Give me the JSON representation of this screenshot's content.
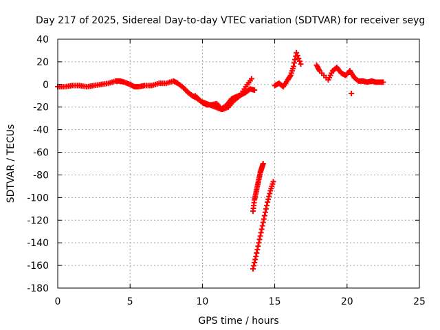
{
  "chart_data": {
    "type": "scatter",
    "title": "Day 217 of 2025, Sidereal Day-to-day VTEC variation (SDTVAR) for receiver seyg",
    "xlabel": "GPS time / hours",
    "ylabel": "SDTVAR / TECUs",
    "xlim": [
      0,
      25
    ],
    "ylim": [
      -180,
      40
    ],
    "xticks": [
      0,
      5,
      10,
      15,
      20,
      25
    ],
    "yticks": [
      40,
      20,
      0,
      -20,
      -40,
      -60,
      -80,
      -100,
      -120,
      -140,
      -160,
      -180
    ],
    "grid": true,
    "marker": "plus",
    "color": "#ff0000",
    "series": [
      {
        "name": "SDTVAR",
        "x": [
          0.0,
          0.5,
          1.0,
          1.5,
          2.0,
          2.5,
          3.0,
          3.5,
          4.0,
          4.3,
          4.6,
          5.0,
          5.3,
          5.6,
          6.0,
          6.5,
          7.0,
          7.5,
          8.0,
          8.3,
          8.7,
          9.0,
          9.3,
          9.6,
          10.0,
          10.3,
          10.6,
          11.0,
          11.3,
          11.7,
          12.0,
          12.3,
          12.7,
          13.0,
          13.3,
          13.6,
          9.5,
          9.9,
          10.3,
          10.7,
          11.1,
          11.4,
          11.8,
          12.2,
          12.6,
          13.0,
          13.4,
          15.0,
          15.3,
          15.6,
          15.9,
          16.1,
          16.3,
          16.5,
          16.8,
          17.9,
          18.1,
          18.7,
          19.0,
          19.3,
          19.6,
          19.9,
          20.2,
          20.5,
          20.8,
          21.1,
          21.4,
          21.7,
          22.0,
          22.3,
          22.5,
          20.3,
          13.5,
          13.6,
          13.7,
          13.8,
          13.9,
          14.0,
          14.1,
          14.2,
          13.5,
          13.7,
          13.9,
          14.1,
          14.3,
          14.5,
          14.7,
          14.9
        ],
        "y": [
          -2,
          -2,
          -1,
          -1,
          -2,
          -1,
          0,
          1,
          3,
          3,
          2,
          0,
          -2,
          -2,
          -1,
          -1,
          1,
          1,
          3,
          1,
          -3,
          -7,
          -10,
          -12,
          -16,
          -18,
          -18,
          -17,
          -22,
          -18,
          -13,
          -11,
          -9,
          -7,
          -4,
          -5,
          -10,
          -15,
          -17,
          -19,
          -21,
          -22,
          -20,
          -14,
          -10,
          -2,
          5,
          -1,
          1,
          -2,
          4,
          8,
          16,
          28,
          18,
          17,
          12,
          4,
          12,
          15,
          10,
          8,
          12,
          6,
          3,
          3,
          2,
          3,
          2,
          2,
          2,
          -8,
          -112,
          -102,
          -96,
          -90,
          -84,
          -78,
          -74,
          -70,
          -163,
          -152,
          -140,
          -128,
          -116,
          -104,
          -94,
          -86
        ]
      }
    ]
  }
}
